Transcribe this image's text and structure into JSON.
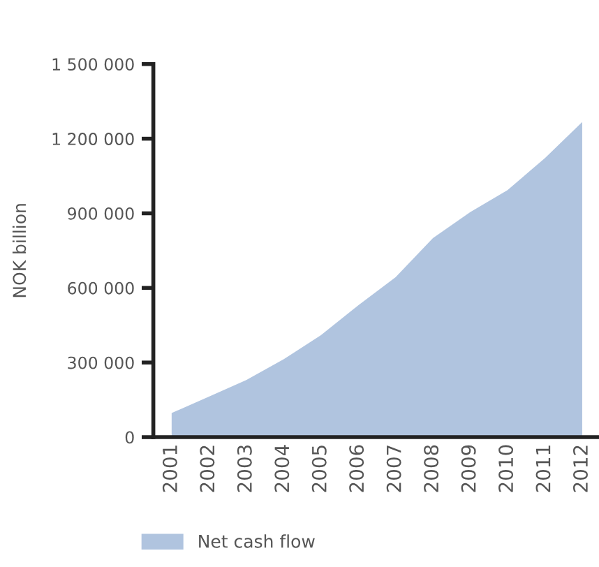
{
  "chart_data": {
    "type": "area",
    "ylabel": "NOK billion",
    "categories": [
      "2001",
      "2002",
      "2003",
      "2004",
      "2005",
      "2006",
      "2007",
      "2008",
      "2009",
      "2010",
      "2011",
      "2012"
    ],
    "series": [
      {
        "name": "Net cash flow",
        "color": "#b0c4df",
        "values": [
          97000,
          163000,
          230000,
          313000,
          410000,
          530000,
          643000,
          800000,
          905000,
          993000,
          1122000,
          1267000
        ]
      }
    ],
    "ylim": [
      0,
      1500000
    ],
    "yticks": [
      {
        "value": 0,
        "label": "0"
      },
      {
        "value": 300000,
        "label": "300 000"
      },
      {
        "value": 600000,
        "label": "600 000"
      },
      {
        "value": 900000,
        "label": "900 000"
      },
      {
        "value": 1200000,
        "label": "1 200 000"
      },
      {
        "value": 1500000,
        "label": "1 500 000"
      }
    ],
    "grid": false,
    "legend": "bottom left"
  }
}
